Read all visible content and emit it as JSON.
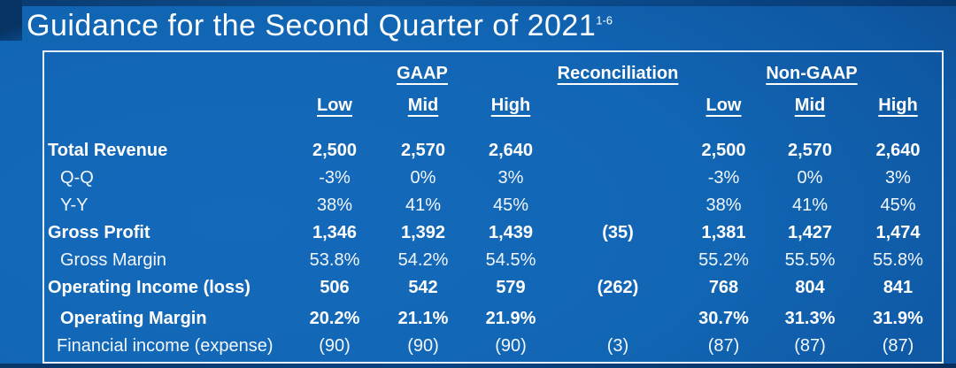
{
  "title": {
    "text": "Guidance for the Second Quarter of 2021",
    "superscript": "1-6"
  },
  "table": {
    "group_headers": {
      "gaap": "GAAP",
      "reconciliation": "Reconciliation",
      "non_gaap": "Non-GAAP"
    },
    "subheaders": [
      "Low",
      "Mid",
      "High",
      "Low",
      "Mid",
      "High"
    ],
    "rows": [
      {
        "label": "Total Revenue",
        "cells": [
          "2,500",
          "2,570",
          "2,640",
          "",
          "2,500",
          "2,570",
          "2,640"
        ]
      },
      {
        "label": "Q-Q",
        "cells": [
          "-3%",
          "0%",
          "3%",
          "",
          "-3%",
          "0%",
          "3%"
        ]
      },
      {
        "label": "Y-Y",
        "cells": [
          "38%",
          "41%",
          "45%",
          "",
          "38%",
          "41%",
          "45%"
        ]
      },
      {
        "label": "Gross Profit",
        "cells": [
          "1,346",
          "1,392",
          "1,439",
          "(35)",
          "1,381",
          "1,427",
          "1,474"
        ]
      },
      {
        "label": "Gross Margin",
        "cells": [
          "53.8%",
          "54.2%",
          "54.5%",
          "",
          "55.2%",
          "55.5%",
          "55.8%"
        ]
      },
      {
        "label": "Operating Income (loss)",
        "cells": [
          "506",
          "542",
          "579",
          "(262)",
          "768",
          "804",
          "841"
        ]
      },
      {
        "label": "Operating Margin",
        "cells": [
          "20.2%",
          "21.1%",
          "21.9%",
          "",
          "30.7%",
          "31.3%",
          "31.9%"
        ]
      },
      {
        "label": "Financial income (expense)",
        "cells": [
          "(90)",
          "(90)",
          "(90)",
          "(3)",
          "(87)",
          "(87)",
          "(87)"
        ]
      }
    ]
  },
  "colors": {
    "background_blue": "#1166B4",
    "background_dark": "#093A70",
    "table_border": "#E6EDF5",
    "text": "#FFFFFF"
  }
}
